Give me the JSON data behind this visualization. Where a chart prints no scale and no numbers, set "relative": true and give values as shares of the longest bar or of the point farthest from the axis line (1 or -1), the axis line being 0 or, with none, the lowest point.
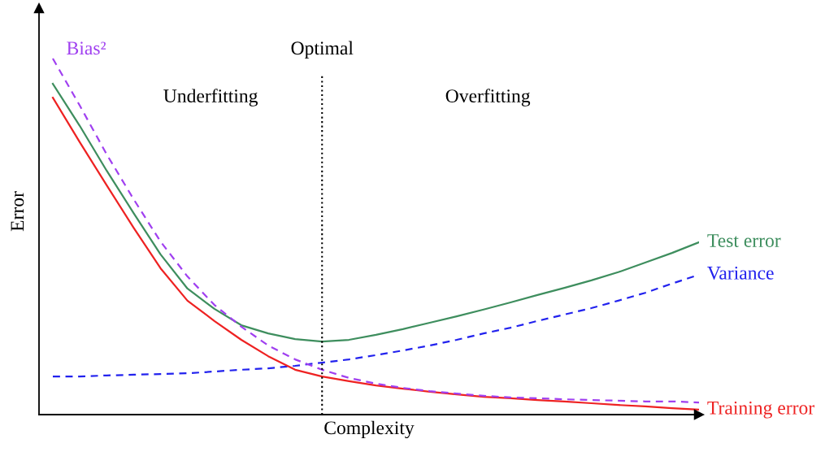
{
  "chart_data": {
    "type": "line",
    "relative": true,
    "xlabel": "Complexity",
    "ylabel": "Error",
    "categories": [
      null,
      null,
      null,
      null,
      null,
      null,
      null,
      null,
      null,
      null,
      null,
      null,
      null,
      null,
      null,
      null,
      null,
      null,
      null,
      null,
      null,
      null,
      null,
      null,
      null
    ],
    "series": [
      {
        "name": "Test error",
        "color": "#3e8e5e",
        "line_style": "solid",
        "values": [
          0.929,
          0.811,
          0.685,
          0.566,
          0.45,
          0.354,
          0.297,
          0.251,
          0.228,
          0.212,
          0.205,
          0.21,
          0.224,
          0.24,
          0.258,
          0.276,
          0.295,
          0.315,
          0.336,
          0.356,
          0.377,
          0.4,
          0.427,
          0.454,
          0.484
        ]
      },
      {
        "name": "Variance",
        "color": "#2222ee",
        "line_style": "dashed",
        "values": [
          0.107,
          0.107,
          0.11,
          0.112,
          0.114,
          0.116,
          0.121,
          0.126,
          0.13,
          0.137,
          0.146,
          0.155,
          0.167,
          0.18,
          0.194,
          0.21,
          0.228,
          0.244,
          0.263,
          0.281,
          0.299,
          0.32,
          0.342,
          0.368,
          0.393
        ]
      },
      {
        "name": "Training error",
        "color": "#ee2222",
        "line_style": "solid",
        "values": [
          0.89,
          0.765,
          0.644,
          0.525,
          0.411,
          0.32,
          0.263,
          0.21,
          0.164,
          0.126,
          0.107,
          0.094,
          0.082,
          0.073,
          0.064,
          0.057,
          0.05,
          0.046,
          0.041,
          0.037,
          0.032,
          0.027,
          0.023,
          0.018,
          0.014
        ]
      },
      {
        "name": "Bias²",
        "color": "#a040f0",
        "line_style": "dashed",
        "values": [
          1.0,
          0.868,
          0.731,
          0.605,
          0.486,
          0.388,
          0.308,
          0.247,
          0.194,
          0.155,
          0.126,
          0.103,
          0.087,
          0.075,
          0.066,
          0.059,
          0.053,
          0.048,
          0.046,
          0.043,
          0.041,
          0.039,
          0.037,
          0.037,
          0.034
        ]
      }
    ],
    "annotations": [
      "Optimal",
      "Underfitting",
      "Overfitting"
    ],
    "grid": false,
    "legend": false
  }
}
